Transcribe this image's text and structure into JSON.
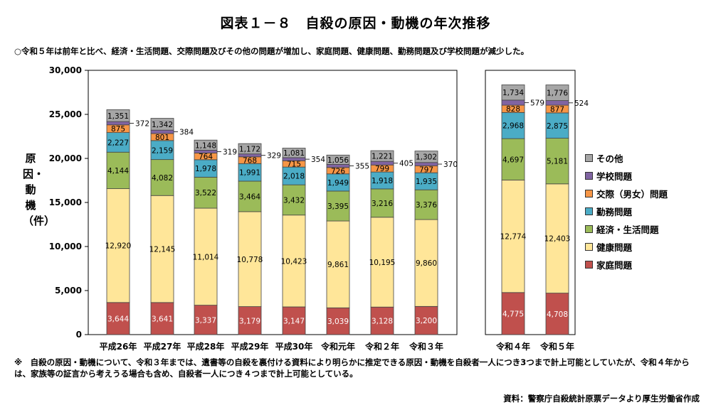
{
  "title": "図表１－８　自殺の原因・動機の年次推移",
  "subtitle": "○令和５年は前年と比べ、経済・生活問題、交際問題及びその他の問題が増加し、家庭問題、健康問題、勤務問題及び学校問題が減少した。",
  "note": "※　自殺の原因・動機について、令和３年までは、遺書等の自殺を裏付ける資料により明らかに推定できる原因・動機を自殺者一人につき3つまで計上可能としていたが、令和４年からは、家族等の証言から考えうる場合も含め、自殺者一人につき４つまで計上可能としている。",
  "source": "資料：警察庁自殺統計原票データより厚生労働省作成",
  "chart_data": {
    "type": "bar",
    "stacked": true,
    "ylabel": "原因・動機（件）",
    "ylim": [
      0,
      30000
    ],
    "yticks": [
      "0",
      "5,000",
      "10,000",
      "15,000",
      "20,000",
      "25,000",
      "30,000"
    ],
    "panels": [
      {
        "categories": [
          "平成26年",
          "平成27年",
          "平成28年",
          "平成29年",
          "平成30年",
          "令和元年",
          "令和２年",
          "令和３年"
        ],
        "series": [
          {
            "name": "家庭問題",
            "color": "#c0504d",
            "values": [
              3644,
              3641,
              3337,
              3179,
              3147,
              3039,
              3128,
              3200
            ],
            "labels": [
              "3,644",
              "3,641",
              "3,337",
              "3,179",
              "3,147",
              "3,039",
              "3,128",
              "3,200"
            ]
          },
          {
            "name": "健康問題",
            "color": "#ffe699",
            "values": [
              12920,
              12145,
              11014,
              10778,
              10423,
              9861,
              10195,
              9860
            ],
            "labels": [
              "12,920",
              "12,145",
              "11,014",
              "10,778",
              "10,423",
              "9,861",
              "10,195",
              "9,860"
            ]
          },
          {
            "name": "経済・生活問題",
            "color": "#9bbb59",
            "values": [
              4144,
              4082,
              3522,
              3464,
              3432,
              3395,
              3216,
              3376
            ],
            "labels": [
              "4,144",
              "4,082",
              "3,522",
              "3,464",
              "3,432",
              "3,395",
              "3,216",
              "3,376"
            ]
          },
          {
            "name": "勤務問題",
            "color": "#4bacc6",
            "values": [
              2227,
              2159,
              1978,
              1991,
              2018,
              1949,
              1918,
              1935
            ],
            "labels": [
              "2,227",
              "2,159",
              "1,978",
              "1,991",
              "2,018",
              "1,949",
              "1,918",
              "1,935"
            ]
          },
          {
            "name": "交際（男女）問題",
            "color": "#f79646",
            "values": [
              875,
              801,
              764,
              768,
              715,
              726,
              799,
              797
            ],
            "labels": [
              "875",
              "801",
              "764",
              "768",
              "715",
              "726",
              "799",
              "797"
            ]
          },
          {
            "name": "学校問題",
            "color": "#8064a2",
            "values": [
              372,
              384,
              319,
              329,
              354,
              355,
              405,
              370
            ],
            "labels": [
              "372",
              "384",
              "319",
              "329",
              "354",
              "355",
              "405",
              "370"
            ]
          },
          {
            "name": "その他",
            "color": "#a6a6a6",
            "values": [
              1351,
              1342,
              1148,
              1172,
              1081,
              1056,
              1221,
              1302
            ],
            "labels": [
              "1,351",
              "1,342",
              "1,148",
              "1,172",
              "1,081",
              "1,056",
              "1,221",
              "1,302"
            ]
          }
        ]
      },
      {
        "categories": [
          "令和４年",
          "令和５年"
        ],
        "series": [
          {
            "name": "家庭問題",
            "color": "#c0504d",
            "values": [
              4775,
              4708
            ],
            "labels": [
              "4,775",
              "4,708"
            ]
          },
          {
            "name": "健康問題",
            "color": "#ffe699",
            "values": [
              12774,
              12403
            ],
            "labels": [
              "12,774",
              "12,403"
            ]
          },
          {
            "name": "経済・生活問題",
            "color": "#9bbb59",
            "values": [
              4697,
              5181
            ],
            "labels": [
              "4,697",
              "5,181"
            ]
          },
          {
            "name": "勤務問題",
            "color": "#4bacc6",
            "values": [
              2968,
              2875
            ],
            "labels": [
              "2,968",
              "2,875"
            ]
          },
          {
            "name": "交際（男女）問題",
            "color": "#f79646",
            "values": [
              828,
              877
            ],
            "labels": [
              "828",
              "877"
            ]
          },
          {
            "name": "学校問題",
            "color": "#8064a2",
            "values": [
              579,
              524
            ],
            "labels": [
              "579",
              "524"
            ]
          },
          {
            "name": "その他",
            "color": "#a6a6a6",
            "values": [
              1734,
              1776
            ],
            "labels": [
              "1,734",
              "1,776"
            ]
          }
        ]
      }
    ],
    "legend": {
      "placement": "right",
      "items": [
        {
          "name": "その他",
          "color": "#a6a6a6"
        },
        {
          "name": "学校問題",
          "color": "#8064a2"
        },
        {
          "name": "交際（男女）問題",
          "color": "#f79646"
        },
        {
          "name": "勤務問題",
          "color": "#4bacc6"
        },
        {
          "name": "経済・生活問題",
          "color": "#9bbb59"
        },
        {
          "name": "健康問題",
          "color": "#ffe699"
        },
        {
          "name": "家庭問題",
          "color": "#c0504d"
        }
      ]
    }
  }
}
